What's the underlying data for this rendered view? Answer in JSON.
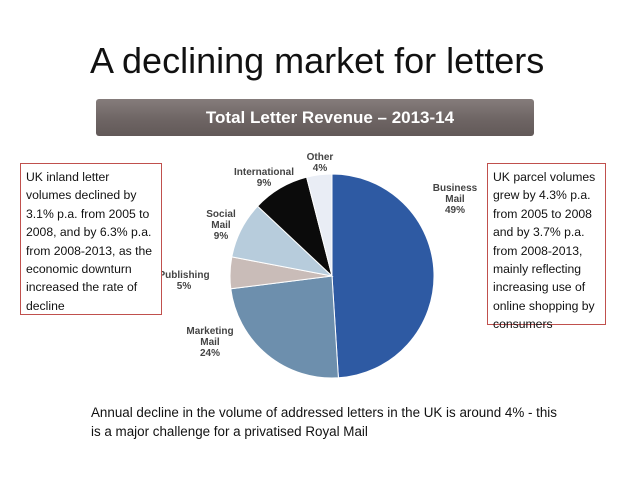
{
  "slide": {
    "title": "A declining market for letters",
    "caption": "Annual decline in the volume of addressed letters in the UK is around 4% - this is a major challenge for a privatised Royal Mail"
  },
  "notes": {
    "left": "UK inland letter volumes declined by 3.1% p.a. from 2005 to 2008, and by 6.3% p.a. from 2008-2013, as the economic downturn increased the rate of decline",
    "right": "UK parcel volumes grew by 4.3% p.a. from 2005 to 2008 and by 3.7% p.a. from 2008-2013, mainly reflecting increasing use of online shopping by consumers"
  },
  "chart_data": {
    "type": "pie",
    "title": "Total Letter Revenue – 2013-14",
    "slices": [
      {
        "label": "Business Mail",
        "value": 49,
        "color": "#2e5aa3"
      },
      {
        "label": "Marketing Mail",
        "value": 24,
        "color": "#6d8fad"
      },
      {
        "label": "Publishing",
        "value": 5,
        "color": "#c9bcb8"
      },
      {
        "label": "Social Mail",
        "value": 9,
        "color": "#b7ccdc"
      },
      {
        "label": "International",
        "value": 9,
        "color": "#0b0b0b"
      },
      {
        "label": "Other",
        "value": 4,
        "color": "#e9edf5"
      }
    ],
    "value_suffix": "%"
  }
}
